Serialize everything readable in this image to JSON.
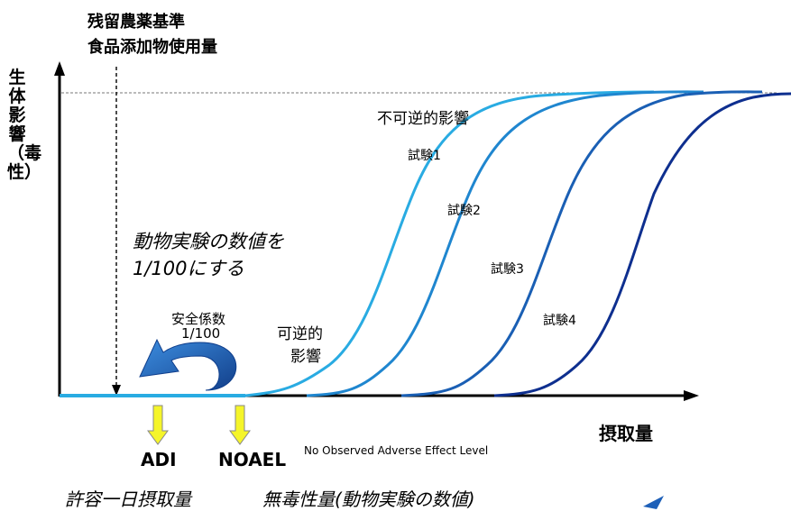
{
  "top_label": {
    "line1": "残留農薬基準",
    "line2": "食品添加物使用量"
  },
  "y_axis_label": "生体影響（毒性）",
  "x_axis_label": "摂取量",
  "annotations": {
    "irreversible": "不可逆的影響",
    "reversible_line1": "可逆的",
    "reversible_line2": "影響",
    "safety_factor_line1": "安全係数",
    "safety_factor_line2": "1/100",
    "animal_note_line1": "動物実験の数値を",
    "animal_note_line2": "1/100にする"
  },
  "curves": [
    "試験1",
    "試験2",
    "試験3",
    "試験4"
  ],
  "markers": {
    "adi": "ADI",
    "noael": "NOAEL",
    "noael_full": "No Observed Adverse Effect Level",
    "adi_desc": "許容一日摂取量",
    "noael_desc": "無毒性量(動物実験の数値)"
  },
  "colors": {
    "curve1": "#29abe2",
    "curve2": "#1f86cf",
    "curve3": "#1a5fb4",
    "curve4": "#0e2f8f",
    "baseline": "#29abe2",
    "arrow_blue": "#1e60b8",
    "marker_arrow": "#f5f52a"
  }
}
